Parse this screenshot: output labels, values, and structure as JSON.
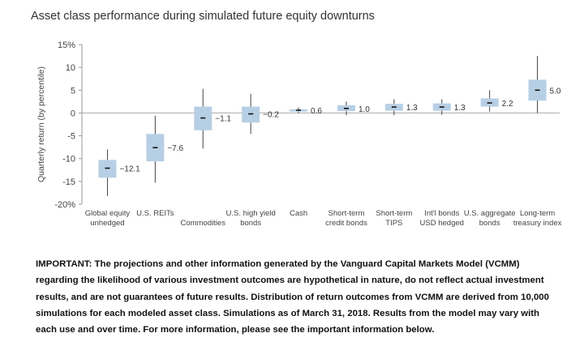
{
  "chart_data": {
    "type": "box",
    "title": "Asset class performance during simulated future equity downturns",
    "ylabel": "Quarterly return (by percentile)",
    "ylim": [
      -20,
      15
    ],
    "yticks": [
      "15%",
      "10",
      "5",
      "0",
      "-5",
      "-10",
      "-15",
      "-20%"
    ],
    "ytick_values": [
      15,
      10,
      5,
      0,
      -5,
      -10,
      -15,
      -20
    ],
    "grid": false,
    "box_color": "#b7cfe4",
    "series": [
      {
        "label": [
          "Global equity",
          "unhedged"
        ],
        "median": -12.1,
        "q1": -14.2,
        "q3": -10.3,
        "min": -18.2,
        "max": -8.0,
        "value_label": "−12.1"
      },
      {
        "label": [
          "U.S. REITs"
        ],
        "median": -7.6,
        "q1": -10.6,
        "q3": -4.6,
        "min": -15.3,
        "max": -0.6,
        "value_label": "−7.6"
      },
      {
        "label": [
          "",
          "Commodities"
        ],
        "median": -1.1,
        "q1": -3.8,
        "q3": 1.4,
        "min": -7.8,
        "max": 5.3,
        "value_label": "−1.1"
      },
      {
        "label": [
          "U.S. high yield",
          "bonds"
        ],
        "median": -0.2,
        "q1": -2.1,
        "q3": 1.4,
        "min": -4.6,
        "max": 4.2,
        "value_label": "−0.2"
      },
      {
        "label": [
          "Cash"
        ],
        "median": 0.6,
        "q1": 0.3,
        "q3": 0.8,
        "min": 0.0,
        "max": 1.2,
        "value_label": "0.6"
      },
      {
        "label": [
          "Short-term",
          "credit bonds"
        ],
        "median": 1.0,
        "q1": 0.4,
        "q3": 1.7,
        "min": -0.5,
        "max": 2.5,
        "value_label": "1.0"
      },
      {
        "label": [
          "Short-term",
          "TIPS"
        ],
        "median": 1.3,
        "q1": 0.5,
        "q3": 2.0,
        "min": -0.5,
        "max": 3.0,
        "value_label": "1.3"
      },
      {
        "label": [
          "Int'l bonds",
          "USD hedged"
        ],
        "median": 1.3,
        "q1": 0.5,
        "q3": 2.1,
        "min": -0.4,
        "max": 3.0,
        "value_label": "1.3"
      },
      {
        "label": [
          "U.S. aggregate",
          "bonds"
        ],
        "median": 2.2,
        "q1": 1.4,
        "q3": 3.2,
        "min": 0.3,
        "max": 5.0,
        "value_label": "2.2"
      },
      {
        "label": [
          "Long-term",
          "treasury index"
        ],
        "median": 5.0,
        "q1": 2.7,
        "q3": 7.3,
        "min": 0.0,
        "max": 12.5,
        "value_label": "5.0"
      }
    ]
  },
  "disclaimer": {
    "text": "IMPORTANT: The projections and other information generated by the Vanguard Capital Markets Model (VCMM) regarding the likelihood of various investment outcomes are hypothetical in nature, do not reflect actual investment results, and are not guarantees of future results. Distribution of return outcomes from VCMM are derived from 10,000 simulations for each modeled asset class. Simulations as of March 31, 2018. Results from the model may vary with each use and over time. For more information, please see the important information below."
  }
}
